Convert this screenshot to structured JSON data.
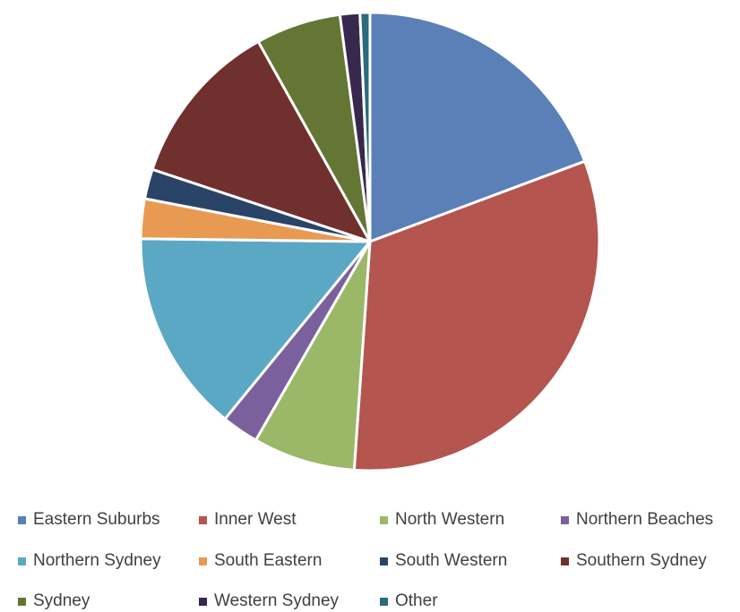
{
  "chart_data": {
    "type": "pie",
    "title": "",
    "slices": [
      {
        "label": "Eastern Suburbs",
        "value": 19.3,
        "color": "#5b80b8"
      },
      {
        "label": "Inner West",
        "value": 31.8,
        "color": "#b4554f"
      },
      {
        "label": "North Western",
        "value": 7.2,
        "color": "#9bb868"
      },
      {
        "label": "Northern Beaches",
        "value": 2.6,
        "color": "#7a619e"
      },
      {
        "label": "Northern Sydney",
        "value": 14.3,
        "color": "#5ba8c4"
      },
      {
        "label": "South Eastern",
        "value": 2.8,
        "color": "#e99a52"
      },
      {
        "label": "South Western",
        "value": 2.1,
        "color": "#2a4467"
      },
      {
        "label": "Southern Sydney",
        "value": 11.8,
        "color": "#70302d"
      },
      {
        "label": "Sydney",
        "value": 6.0,
        "color": "#647633"
      },
      {
        "label": "Western Sydney",
        "value": 1.4,
        "color": "#38284e"
      },
      {
        "label": "Other",
        "value": 0.7,
        "color": "#2c6a7e"
      }
    ],
    "legend_position": "bottom"
  }
}
